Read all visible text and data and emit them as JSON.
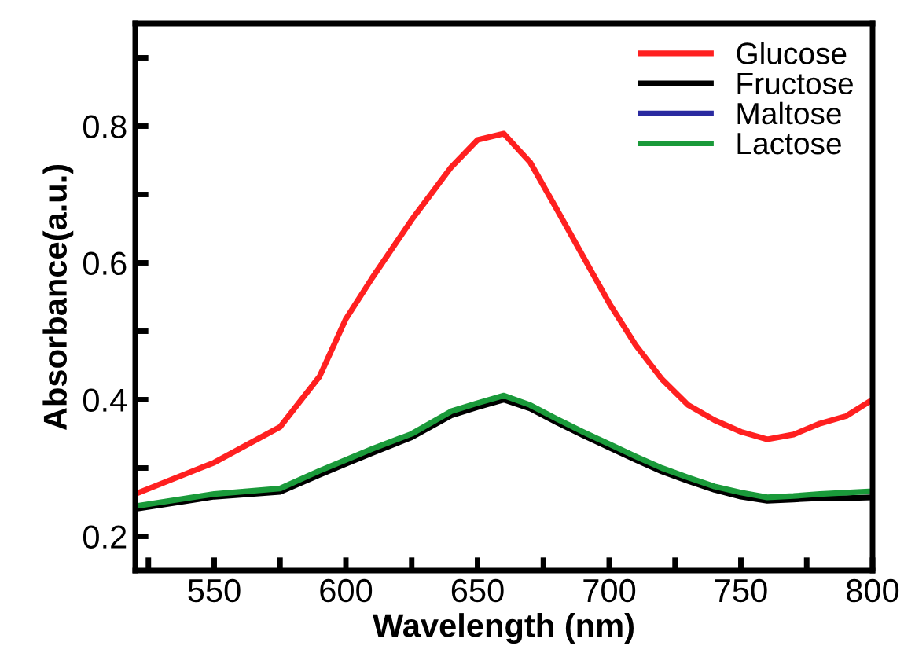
{
  "chart_data": {
    "type": "line",
    "xlabel": "Wavelength (nm)",
    "ylabel": "Absorbance(a.u.)",
    "xlim": [
      520,
      800
    ],
    "ylim": [
      0.15,
      0.95
    ],
    "xticks": [
      {
        "value": 525,
        "label": null
      },
      550,
      {
        "value": 575,
        "label": null
      },
      600,
      {
        "value": 625,
        "label": null
      },
      650,
      {
        "value": 675,
        "label": null
      },
      700,
      {
        "value": 725,
        "label": null
      },
      750,
      {
        "value": 775,
        "label": null
      },
      800
    ],
    "yticks": [
      0.2,
      {
        "value": 0.3,
        "label": null
      },
      0.4,
      {
        "value": 0.5,
        "label": null
      },
      0.6,
      {
        "value": 0.7,
        "label": null
      },
      0.8,
      {
        "value": 0.9,
        "label": null
      }
    ],
    "grid": false,
    "legend": "top right",
    "marker": "none",
    "line_style": "solid",
    "x": [
      520,
      550,
      575,
      590,
      600,
      610,
      625,
      640,
      650,
      660,
      670,
      680,
      690,
      700,
      710,
      720,
      730,
      740,
      750,
      760,
      770,
      780,
      790,
      800
    ],
    "series": [
      {
        "name": "Glucose",
        "color": "#ff2020",
        "values": [
          0.262,
          0.308,
          0.36,
          0.434,
          0.518,
          0.578,
          0.663,
          0.74,
          0.78,
          0.789,
          0.747,
          0.679,
          0.61,
          0.541,
          0.48,
          0.43,
          0.392,
          0.37,
          0.353,
          0.342,
          0.349,
          0.365,
          0.376,
          0.4
        ]
      },
      {
        "name": "Fructose",
        "color": "#000000",
        "values": [
          0.24,
          0.258,
          0.265,
          0.29,
          0.306,
          0.322,
          0.345,
          0.377,
          0.389,
          0.4,
          0.387,
          0.367,
          0.348,
          0.33,
          0.312,
          0.295,
          0.281,
          0.268,
          0.258,
          0.252,
          0.254,
          0.256,
          0.256,
          0.257
        ]
      },
      {
        "name": "Maltose",
        "color": "#2a2aa0",
        "values": [
          null,
          null,
          null,
          null,
          null,
          null,
          null,
          null,
          null,
          null,
          null,
          null,
          null,
          null,
          null,
          null,
          null,
          null,
          null,
          null,
          null,
          null,
          null,
          null
        ]
      },
      {
        "name": "Lactose",
        "color": "#1a9a3a",
        "values": [
          0.244,
          0.262,
          0.27,
          0.296,
          0.312,
          0.328,
          0.35,
          0.383,
          0.395,
          0.406,
          0.392,
          0.372,
          0.353,
          0.335,
          0.317,
          0.3,
          0.286,
          0.273,
          0.264,
          0.257,
          0.259,
          0.262,
          0.264,
          0.266
        ]
      }
    ]
  }
}
